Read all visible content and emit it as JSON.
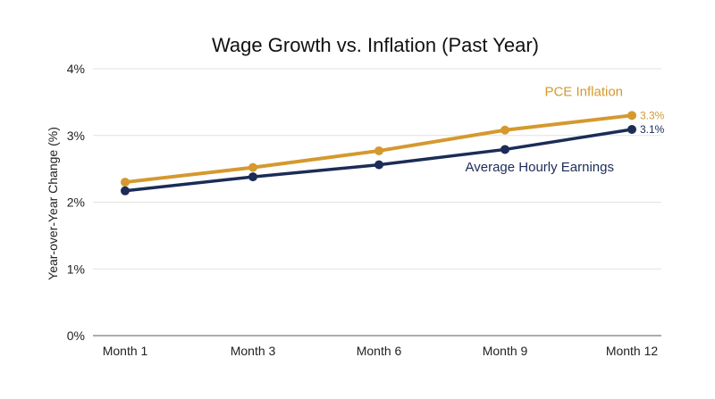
{
  "chart_data": {
    "type": "line",
    "title": "Wage Growth vs. Inflation (Past Year)",
    "xlabel": "",
    "ylabel": "Year-over-Year Change (%)",
    "categories": [
      "Month 1",
      "Month 3",
      "Month 6",
      "Month 9",
      "Month 12"
    ],
    "y_ticks": [
      "0%",
      "1%",
      "2%",
      "3%",
      "4%"
    ],
    "ylim": [
      0,
      4
    ],
    "grid": true,
    "legend": "inline labels",
    "series": [
      {
        "name": "PCE Inflation",
        "values": [
          2.3,
          2.52,
          2.77,
          3.08,
          3.3
        ],
        "end_label": "3.3%",
        "color": "#D4992F"
      },
      {
        "name": "Average Hourly Earnings",
        "values": [
          2.17,
          2.38,
          2.56,
          2.79,
          3.09
        ],
        "end_label": "3.1%",
        "color": "#1B2C57"
      }
    ]
  }
}
